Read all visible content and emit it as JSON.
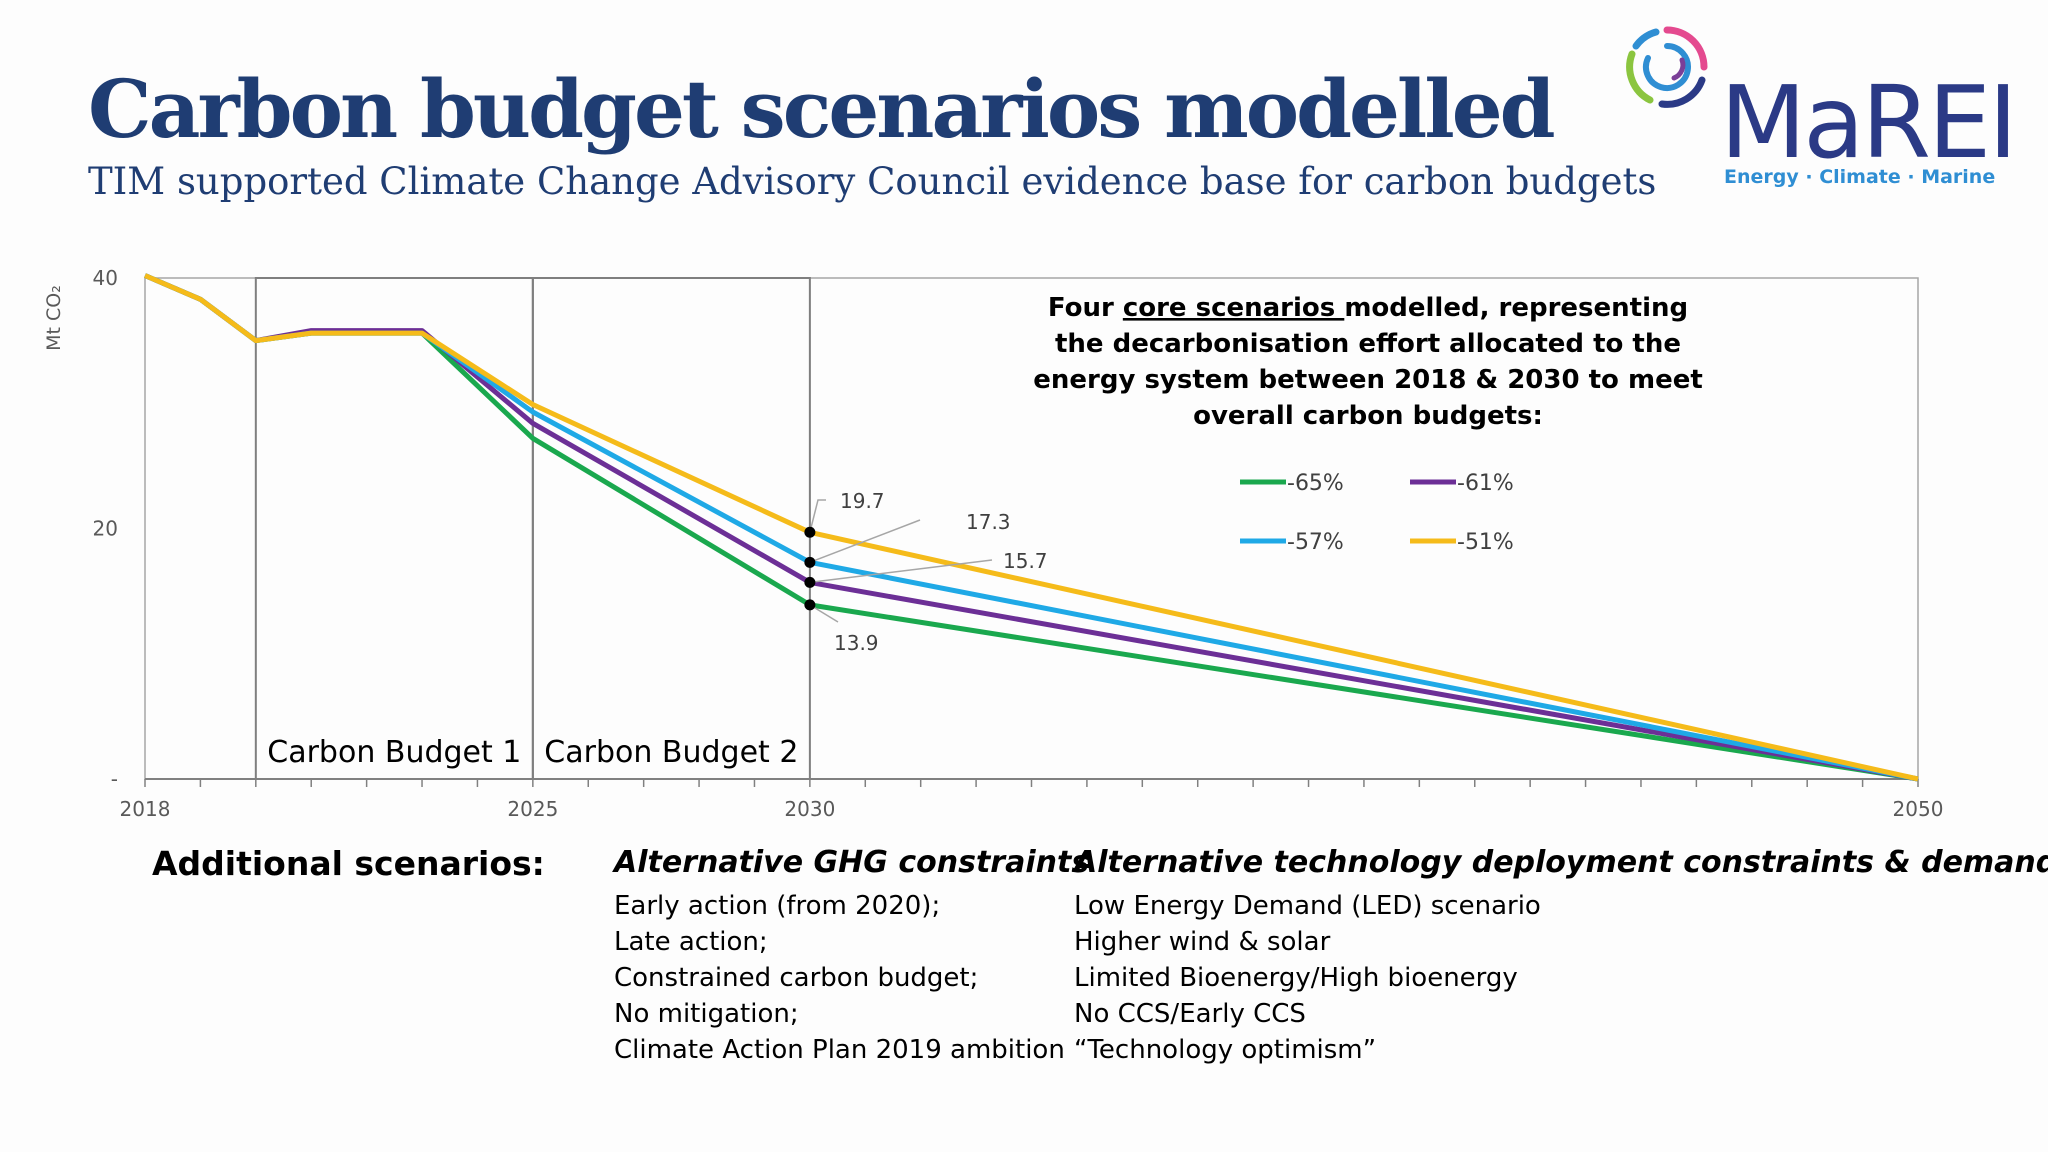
{
  "header": {
    "title": "Carbon budget scenarios modelled",
    "subtitle": "TIM supported Climate Change Advisory Council evidence base for carbon budgets"
  },
  "logo": {
    "name": "MaREI",
    "tagline": "Energy · Climate · Marine",
    "colors": [
      "#2f8ed3",
      "#2b3a86",
      "#8bc53f",
      "#7b3f98",
      "#e44a8f"
    ]
  },
  "annotation": {
    "lines": [
      {
        "before": "Four ",
        "underline": "core scenarios ",
        "after": "modelled, representing"
      },
      {
        "before": "the decarbonisation effort allocated to the",
        "underline": "",
        "after": ""
      },
      {
        "before": "energy system between 2018 & 2030 to meet",
        "underline": "",
        "after": ""
      },
      {
        "before": "overall carbon budgets:",
        "underline": "",
        "after": ""
      }
    ]
  },
  "chart_data": {
    "type": "line",
    "ylabel": "Mt CO₂",
    "xlabel": "",
    "xlim": [
      2018,
      2050
    ],
    "ylim": [
      0,
      40
    ],
    "y_ticks": [
      {
        "value": 0,
        "label": "-"
      },
      {
        "value": 20,
        "label": "20"
      },
      {
        "value": 40,
        "label": "40"
      }
    ],
    "x_tick_labels": [
      {
        "value": 2018,
        "label": "2018"
      },
      {
        "value": 2025,
        "label": "2025"
      },
      {
        "value": 2030,
        "label": "2030"
      },
      {
        "value": 2050,
        "label": "2050"
      }
    ],
    "x_minor_ticks": [
      2019,
      2020,
      2021,
      2022,
      2023,
      2024,
      2026,
      2027,
      2028,
      2029,
      2031,
      2032,
      2033,
      2034,
      2035,
      2036,
      2037,
      2038,
      2039,
      2040,
      2041,
      2042,
      2043,
      2044,
      2045,
      2046,
      2047,
      2048,
      2049
    ],
    "grid": false,
    "legend_position": "top-right",
    "budget_periods": [
      {
        "label": "Carbon Budget 1",
        "start": 2020,
        "end": 2025
      },
      {
        "label": "Carbon Budget 2",
        "start": 2025,
        "end": 2030
      }
    ],
    "series": [
      {
        "name": "-65%",
        "color": "#1aa84e",
        "x": [
          2018,
          2019,
          2020,
          2021,
          2022,
          2023,
          2025,
          2030,
          2050
        ],
        "y": [
          40.2,
          38.3,
          35.0,
          35.6,
          35.6,
          35.6,
          27.2,
          13.9,
          0
        ]
      },
      {
        "name": "-61%",
        "color": "#6c2f96",
        "x": [
          2018,
          2019,
          2020,
          2021,
          2022,
          2023,
          2025,
          2030,
          2050
        ],
        "y": [
          40.2,
          38.3,
          35.0,
          35.8,
          35.8,
          35.8,
          28.4,
          15.7,
          0
        ]
      },
      {
        "name": "-57%",
        "color": "#1fa9e6",
        "x": [
          2018,
          2019,
          2020,
          2021,
          2022,
          2023,
          2025,
          2030,
          2050
        ],
        "y": [
          40.2,
          38.3,
          35.0,
          35.6,
          35.6,
          35.6,
          29.3,
          17.3,
          0
        ]
      },
      {
        "name": "-51%",
        "color": "#f5bb1a",
        "x": [
          2018,
          2019,
          2020,
          2021,
          2022,
          2023,
          2025,
          2030,
          2050
        ],
        "y": [
          40.2,
          38.3,
          35.0,
          35.6,
          35.6,
          35.6,
          29.9,
          19.7,
          0
        ]
      }
    ],
    "data_labels": [
      {
        "series": "-51%",
        "x": 2030,
        "value": "19.7"
      },
      {
        "series": "-57%",
        "x": 2030,
        "value": "17.3"
      },
      {
        "series": "-61%",
        "x": 2030,
        "value": "15.7"
      },
      {
        "series": "-65%",
        "x": 2030,
        "value": "13.9"
      }
    ]
  },
  "additional": {
    "title": "Additional scenarios:",
    "columns": [
      {
        "heading": "Alternative GHG constraints",
        "items": [
          "Early action (from 2020);",
          "Late action;",
          "Constrained carbon budget;",
          "No mitigation;",
          "Climate Action Plan 2019 ambition"
        ]
      },
      {
        "heading": "Alternative technology deployment constraints & demand",
        "items": [
          "Low Energy Demand (LED) scenario",
          "Higher wind & solar",
          "Limited Bioenergy/High bioenergy",
          "No CCS/Early CCS",
          "“Technology optimism”"
        ]
      }
    ]
  }
}
